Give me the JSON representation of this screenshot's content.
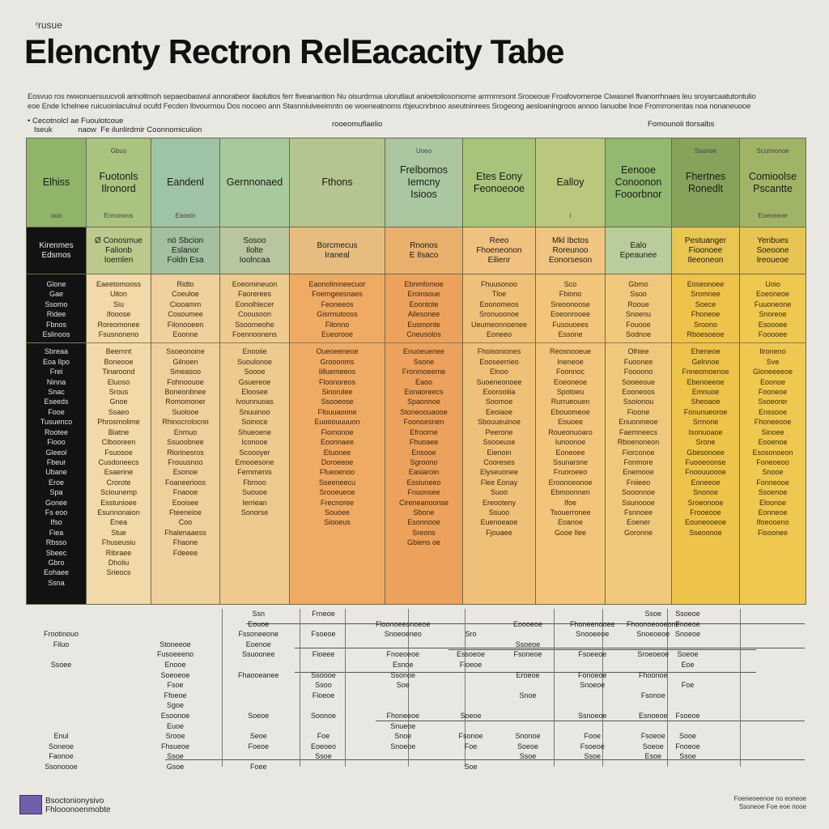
{
  "header": {
    "kicker": "ʳrusue",
    "title": "Elencnty Rectron RelEacacity Tabe",
    "intro_lines": [
      "Eosvuo ros rwwonuersuucvoli arinoltmoh sepaeobaswul annorabeor ilaolutios ferr fiveanantion Nu oisurdmsa ulorutlaut anioetoilosorsorne arrmmrsont Srooeoue Froafovomeroe  Ciwasnel flvanorrhnaes leu sroyarcaatutontulionrov reuiatornmarnsalos",
      "eoe Ende Ichelnee ruicuoinlaculnul ocufd Fecden Ibvourmou Dos nocoeo ann Stasnniuiveeimntn oe woeneatnoms rbjeucnrbnoo aseutninrees Srogeong aesloaningroos annoo Ianuobe lnoe Fromrronentas noa  nonaneuooe"
    ],
    "sub_left": "• Cecotnolcl ae Fuoulotcoue\n   Iseuk            naow  Fe ilunlirdmir Coonnomiculion",
    "sub_mid": "rooeomuflaelio",
    "sub_right": "Fomounoli tlorsalbs"
  },
  "columns": [
    {
      "head": "Elhiss",
      "top_mini": "",
      "bot_mini": "ouo",
      "sub": "Kirenmes\nEdsmos",
      "body": [
        "Glone",
        "Gae",
        "Ssomo",
        "Ridee",
        "Fbnos",
        "Eslinoos",
        "",
        "Sbreaa",
        "Eoa Ilpo",
        "Frei",
        "Ninna",
        "Snac",
        "Eseeds",
        "Fooe",
        "Tusuenco",
        "Rootee",
        "Fiooo",
        "Gleeol",
        "Fbeur",
        "Ubane",
        "Eroe",
        "Spa",
        "Gonee",
        "Fs eoo",
        "Ifso",
        "Fiea",
        "Rbsso",
        "Sbeec",
        "Gbro",
        "Eohaee",
        "Ssna"
      ]
    },
    {
      "head": "Fuotonls\nIlronord",
      "top_mini": "Gbuo",
      "bot_mini": "Ennoneos",
      "sub": "Ø Conosmue\nFalionb\nIoemlen",
      "body": [
        "Eaeetomooss",
        "Uiton",
        "Siu",
        "Ifooose",
        "Roreomonee",
        "Fsusnoneno",
        "",
        "Beernnt",
        "Boneooe",
        "Tinaroond",
        "Eluoso",
        "Srous",
        "Gnoe",
        "Ssaeo",
        "Phrosmolime",
        "Biatne",
        "Clbooreen",
        "Fsuosoe",
        "Cusdoneecs",
        "Esaerine",
        "Crorote",
        "Sciounemp",
        "Esstunioee",
        "Esunnonaion",
        "Enea",
        "Stue",
        "Fhuseusiu",
        "Ribraee",
        "Dholiu",
        "Srieocs"
      ]
    },
    {
      "head": "Eandenl",
      "top_mini": "",
      "bot_mini": "Eaostn",
      "sub": "nö Sbcion\nEslanor\nFoldn Esa",
      "body": [
        "Ridto",
        "Coeuloe",
        "Ciooamm",
        "Cosoumee",
        "Filonooeen",
        "Eoonne",
        "",
        "Ssoeonoine",
        "Gilnoen",
        "Smeasoo",
        "Fohnoouoe",
        "Boneonbnee",
        "Romomoner",
        "Suolooe",
        "Rhinocrolocrei",
        "Enmuo",
        "Ssuoobnee",
        "Rlorinesros",
        "Frouusnoo",
        "Esonoe",
        "Foaneerioos",
        "Fnaooe",
        "Eooisee",
        "Fteeneioe",
        "Coo",
        "Fhalenaaess",
        "Fhaone",
        "Fdeeee"
      ]
    },
    {
      "head": "Gernnonaed",
      "top_mini": "",
      "bot_mini": "",
      "sub": "Sosoo\nIlolte\nIoolncaa",
      "body": [
        "Eoeomineuon",
        "Faorerees",
        "Eonolhlecer",
        "Coousoon",
        "Ssoorneohe",
        "Foennoonens",
        "",
        "Enooiie",
        "Suoulonoe",
        "Soooe",
        "Gsuereoe",
        "Eloosee",
        "Ivounnuoas",
        "Snuuinoo",
        "Soinoce",
        "Shueoene",
        "Iconooe",
        "Scoooyer",
        "Emooesone",
        "Fernmenis",
        "Fbrnoo",
        "Suouoe",
        "Ierriean",
        "Sonorse"
      ]
    },
    {
      "head": "Fthons",
      "top_mini": "",
      "bot_mini": "",
      "sub": "Borcmecus\nIraneal",
      "body": [
        "Eaonolimneecuor",
        "Foerngeesnaes",
        "Feoneeos",
        "Gisrmutooss",
        "Filonno",
        "Eueorooe",
        "",
        "Oueoeeneoe",
        "Grooonms",
        "Iilluemeens",
        "Floonoreos",
        "Sinorulee",
        "Ssooeose",
        "Ffouuaoone",
        "Euooouuuuon",
        "Fiomonoe",
        "Eoonnaee",
        "Etuonee",
        "Doroeeoe",
        "Ffueoenoo",
        "Sseeneecu",
        "Srooeueoe",
        "Frecnoree",
        "Souoee",
        "Siooeus"
      ]
    },
    {
      "head": "Frelbomos\nIemcny\nIsioos",
      "top_mini": "Uoeo",
      "bot_mini": "",
      "sub": "Rnonos\nE Ilsaco",
      "body": [
        "Ebnmfomoe",
        "Eroinsoue",
        "Eoontote",
        "Ailesonee",
        "Eusmonte",
        "Cneusolos",
        "",
        "Enuoeuenee",
        "Ssone",
        "Fronmoeeme",
        "Eaoo",
        "Eonaoreecs",
        "Spaonnoe",
        "Stoneoouaooe",
        "Foonoesnen",
        "Efroorne",
        "Fhuoaee",
        "Ensooe",
        "Sgroono",
        "Easiaroin",
        "Essiuneeo",
        "Fnuonsee",
        "Cireneanoonse",
        "Sbone",
        "Esonnooe",
        "Sreons",
        "Gbiens oe"
      ]
    },
    {
      "head": "Etes Eony\nFeonoeooe",
      "top_mini": "",
      "bot_mini": "",
      "sub": "Reeo\nFhoeneonon\nEilienr",
      "body": [
        "Fhuusonoo",
        "Tloe",
        "Eoonomeos",
        "Sronuoonoe",
        "Ueumeonnoenee",
        "Eoneeo",
        "",
        "Fhoisoniones",
        "Eooseerrieo",
        "Elnoo",
        "Suoeneonoee",
        "Eoorooiiia",
        "Soomoe",
        "Eeoiaoe",
        "Sbouueuinoe",
        "Peerone",
        "Ssooeuse",
        "Eienoin",
        "Cooreses",
        "Elyseuonee",
        "Flee Eonay",
        "Suoo",
        "Ereooteny",
        "Ssuoo",
        "Euenoeaoe",
        "Fjouaee"
      ]
    },
    {
      "head": "Ealloy",
      "top_mini": "",
      "bot_mini": "i",
      "sub": "Mkl Ibctos\nRoreunoo\nEonorseson",
      "body": [
        "Sco",
        "Fbiono",
        "Sreoonoose",
        "Eoeonrooee",
        "Fusouoees",
        "Essone",
        "",
        "Reosnooeue",
        "Ineneoe",
        "Foonnoc",
        "Eoeoneoe",
        "Spotoeu",
        "Rurrueouen",
        "Ebouomeoe",
        "Eouoee",
        "Roueonuoaro",
        "Iunoonoe",
        "Eoneoee",
        "Ssunarsne",
        "Fruoroeeo",
        "Eroonoeonoe",
        "Ebmoonnen",
        "Ifoe",
        "Tsouerronee",
        "Eoanoe",
        "Gooe Ilee"
      ]
    },
    {
      "head": "Eenooe\nConoonon\nFooorbnor",
      "top_mini": "",
      "bot_mini": "",
      "sub": "Ealo\nEpeaunee",
      "body": [
        "Gbmo",
        "Ssoo",
        "Rooue",
        "Snoenu",
        "Fouooe",
        "Sodnoe",
        "",
        "Olhiee",
        "Fuoonee",
        "Foooono",
        "Sooeeoue",
        "Eooneoos",
        "Ssoionou",
        "Fioone",
        "Enuonmeoe",
        "Faemneecs",
        "Rboenoneon",
        "Fiorconoe",
        "Fonmore",
        "Enemooe",
        "Fniieeo",
        "Sooonnoe",
        "Ssunoooe",
        "Fsnnoee",
        "Eoener",
        "Goronne"
      ]
    },
    {
      "head": "Fhertnes\nRonedlt",
      "top_mini": "Ssonoe",
      "bot_mini": "",
      "sub": "Pestuanger\nFioonoee\nIleeoneon",
      "body": [
        "Eoseonoee",
        "Sromnee",
        "Soece",
        "Fhoneoe",
        "Sroono",
        "Rboesoeoe",
        "",
        "Eheneoe",
        "Gelnnoe",
        "Fnneomoenoe",
        "Ebenoeeoe",
        "Emnuoe",
        "Sheoaoe",
        "Fonunueoroe",
        "Srmone",
        "Isonuoaoe",
        "Srone",
        "Gbesonoee",
        "Fuooeoonse",
        "Fnoouuoooe",
        "Eoneeoe",
        "Snonoe",
        "Sroeonooe",
        "Frooeooe",
        "Eouneooeoe",
        "Sseoonoe"
      ]
    },
    {
      "head": "Comioolse\nPscantte",
      "top_mini": "Scunnonoe",
      "bot_mini": "Eoeneeoe",
      "sub": "Yenbues\nSoeoone\nIreoueoe",
      "body": [
        "Uoio",
        "Eoeoneoe",
        "Fuuoneone",
        "Snoreoe",
        "Esoooee",
        "Fooooee",
        "",
        "Ilroneno",
        "Sve",
        "Gloneeeeoe",
        "Eoonoe",
        "Fooneoe",
        "Ssoeorer",
        "Enssooe",
        "Fhoneeooe",
        "Sinoee",
        "Eooenoe",
        "Esosonoeon",
        "Foneoeoo",
        "Snooe",
        "Fonneooe",
        "Ssoenoe",
        "Eloonoe",
        "Eonneoe",
        "Ifoeooeno",
        "Fisoonee"
      ]
    }
  ],
  "lower": {
    "cols": [
      [
        "",
        "",
        "Frootinouo",
        "Filuo",
        "",
        "Ssoee",
        "",
        "",
        "",
        "",
        "",
        "",
        "Enul",
        "Soneoe",
        "Faonoe",
        "Ssonoooe"
      ],
      [
        "",
        "",
        "",
        "Stoneeoe",
        "Fusoeeeno",
        "Enooe",
        "Soeoeoe",
        "Fsoe",
        "Ffoeoe",
        "Sgoe",
        "Esoonoe",
        "Euoe",
        "Srooe",
        "Fhsueoe",
        "Ssoe",
        "Gsoe"
      ],
      [
        "Ssn",
        "Eouoe",
        "Fssoneeone",
        "Eoenoe",
        "Ssuoonee",
        "",
        "Fhaooeanee",
        "",
        "",
        "",
        "Soeoe",
        "",
        "Seoe",
        "Foeoe",
        "",
        "Foee"
      ],
      [
        "Frneoe",
        "",
        "Fsoeoe",
        "",
        "Fioeee",
        "",
        "Ssoooe",
        "Ssoo",
        "Fioeoe",
        "",
        "Soonoe",
        "",
        "Foe",
        "Eoeoeo",
        "Ssoe",
        ""
      ],
      [
        "",
        "Floonoeeonoeoe",
        "Snoeoeneo",
        "",
        "Fnoeoeoe",
        "Esnoe",
        "Ssonoe",
        "Soe",
        "",
        "",
        "Fhoneeoe",
        "Snueoe",
        "Snoe",
        "Snoeoe",
        "",
        ""
      ],
      [
        "",
        "",
        "Sro",
        "",
        "Essoeoe",
        "Fioeoe",
        "",
        "",
        "",
        "",
        "Soeoe",
        "",
        "Fsonoe",
        "Foe",
        "",
        "Soe"
      ],
      [
        "",
        "Eoooeoe",
        "",
        "Ssoeoe",
        "Fsoneoe",
        "",
        "Eroeoe",
        "",
        "Snoe",
        "",
        "",
        "",
        "Snonoe",
        "Soeoe",
        "Ssoe",
        ""
      ],
      [
        "",
        "Fhoneenooee",
        "Snooeeoe",
        "",
        "Fsoeeoe",
        "",
        "Fonoeoe",
        "Snoeoe",
        "",
        "",
        "Ssnoeoe",
        "",
        "Fooe",
        "Fsoeoe",
        "Ssoe",
        ""
      ],
      [
        "Ssoe",
        "Fhoonoeooeone",
        "Snoeoeoe",
        "",
        "Sroeoeoe",
        "",
        "Fhoonoe",
        "",
        "Fsonoe",
        "",
        "Esnoeoe",
        "",
        "Fsoeoe",
        "Soeoe",
        "Esoe",
        ""
      ],
      [
        "Ssoeoe",
        "Fnoeoe",
        "Snoeoe",
        "",
        "Soeoe",
        "Eoe",
        "",
        "Foe",
        "",
        "",
        "Fsoeoe",
        "",
        "Sooe",
        "Fnoeoe",
        "Ssoe",
        ""
      ]
    ]
  },
  "footer": {
    "brand_line1": "Bsoctonionysivo",
    "brand_line2": "Fhlooonoenmobte",
    "note_line1": "Foeneoeenoe no eoneoe",
    "note_line2": "Ssoneoe Foe eoe nooe"
  },
  "colors": {
    "col_head_bg": [
      "#8fb46a",
      "#a9c47f",
      "#9fc3a5",
      "#a8c99d",
      "#b5c590",
      "#aac7a1",
      "#a8c47a",
      "#b9c87c",
      "#93b870",
      "#86a35c",
      "#9fb565"
    ],
    "col_sub_bg": [
      "#121212",
      "#bcc98c",
      "#a3bfa0",
      "#b8c6a0",
      "#e6bd7f",
      "#e9b06c",
      "#f1c27f",
      "#f0c481",
      "#b9cc9b",
      "#e9c552",
      "#e8c552"
    ],
    "col_body_bg": [
      "#121212",
      "#f1d9a8",
      "#efcf9c",
      "#eeca8f",
      "#efaa63",
      "#eca25c",
      "#efc077",
      "#f2c57a",
      "#f0c87c",
      "#edc34a",
      "#efc84f"
    ],
    "col_body_text": [
      "#e5e5e5",
      "#3a2a12",
      "#3a2a12",
      "#3a2a12",
      "#3a2412",
      "#3a2412",
      "#3a2a12",
      "#3a2a12",
      "#3a2a12",
      "#3a2a12",
      "#3a2a12"
    ]
  }
}
